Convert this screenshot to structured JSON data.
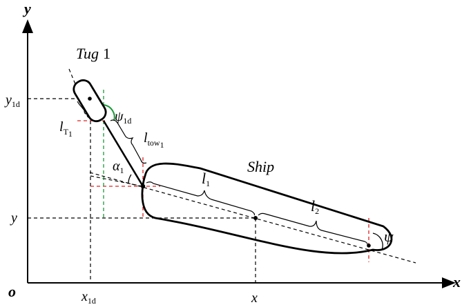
{
  "axes": {
    "x_label": "x",
    "y_label": "y",
    "origin_label": "o"
  },
  "tug": {
    "name_italic": "Tug",
    "name_number": "1"
  },
  "ship": {
    "label": "Ship"
  },
  "symbols": {
    "psi": "ψ",
    "psi_1d_main": "ψ",
    "psi_1d_sub": "1d",
    "alpha_main": "α",
    "alpha_sub": "1",
    "l1_main": "l",
    "l1_sub": "1",
    "l2_main": "l",
    "l2_sub": "2",
    "ltow_main": "l",
    "ltow_sub": "tow",
    "ltow_subsub": "1",
    "lT_main": "l",
    "lT_sub": "T",
    "lT_subsub": "1"
  },
  "tick_labels": {
    "x1d_main": "x",
    "x1d_sub": "1d",
    "x": "x",
    "y1d_main": "y",
    "y1d_sub": "1d",
    "y": "y"
  },
  "colors": {
    "ink": "#000000",
    "red_guides": "#e02020",
    "green_guides": "#1a9a3a"
  }
}
